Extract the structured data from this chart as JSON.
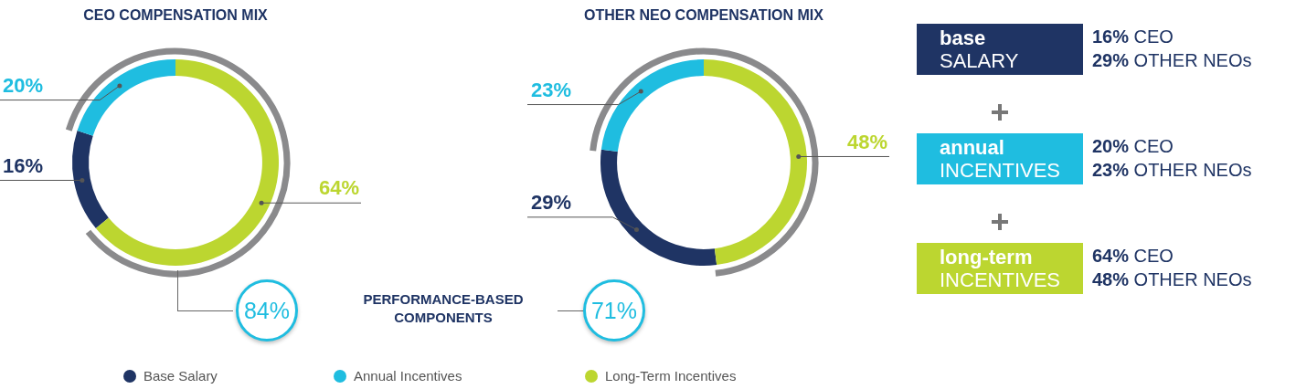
{
  "chart_data": [
    {
      "type": "donut",
      "title": "CEO COMPENSATION MIX",
      "categories": [
        "Base Salary",
        "Annual Incentives",
        "Long-Term Incentives"
      ],
      "values": [
        16,
        20,
        64
      ],
      "value_labels": [
        "16%",
        "20%",
        "64%"
      ],
      "colors": [
        "#1f3464",
        "#1fbde0",
        "#bcd630"
      ],
      "legend": "bottom",
      "annotations": [
        "84%",
        "PERFORMANCE-BASED COMPONENTS"
      ]
    },
    {
      "type": "donut",
      "title": "OTHER NEO COMPENSATION MIX",
      "categories": [
        null,
        null,
        null
      ],
      "values": [
        29,
        23,
        48
      ],
      "value_labels": [
        "29%",
        "23%",
        "48%"
      ],
      "colors": [
        "#1f3464",
        "#1fbde0",
        "#bcd630"
      ],
      "annotations": [
        "71%"
      ]
    },
    {
      "type": "other",
      "categories": [
        "base SALARY",
        "annual INCENTIVES",
        "long-term INCENTIVES"
      ],
      "colors": [
        "#1f3464",
        "#1fbde0",
        "#bcd630"
      ],
      "annotations": [
        "16% CEO",
        "29% OTHER NEOs",
        "20% CEO",
        "23% OTHER NEOs",
        "64% CEO",
        "48% OTHER NEOs"
      ]
    }
  ]
}
